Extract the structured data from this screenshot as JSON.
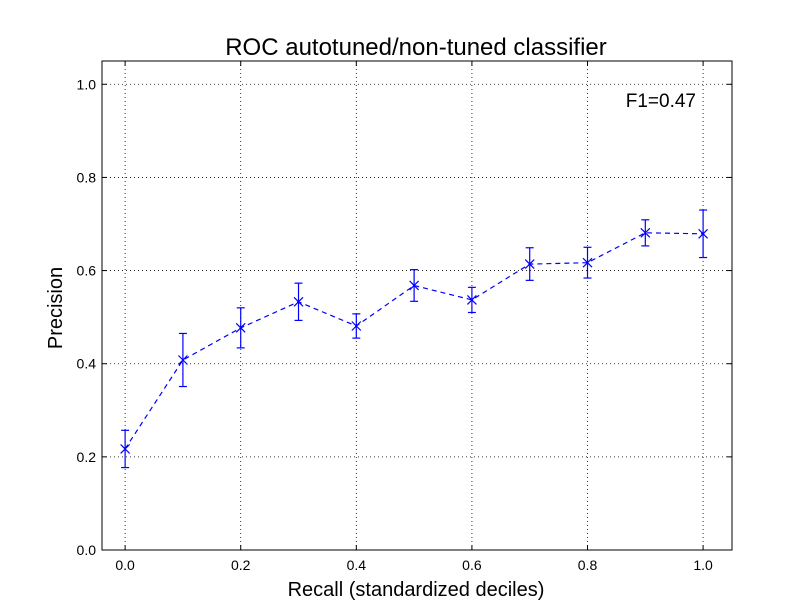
{
  "chart_data": {
    "type": "line",
    "title": "ROC autotuned/non-tuned classifier",
    "xlabel": "Recall (standardized deciles)",
    "ylabel": "Precision",
    "xlim": [
      -0.04,
      1.05
    ],
    "ylim": [
      0.0,
      1.05
    ],
    "x_ticks": [
      "0.0",
      "0.2",
      "0.4",
      "0.6",
      "0.8",
      "1.0"
    ],
    "y_ticks": [
      "0.0",
      "0.2",
      "0.4",
      "0.6",
      "0.8",
      "1.0"
    ],
    "grid": true,
    "line_style": "dashed",
    "marker": "x",
    "color": "#0000ff",
    "annotation": "F1=0.47",
    "annotation_placement": "top-right",
    "series": [
      {
        "x": [
          0.0,
          0.1,
          0.2,
          0.3,
          0.4,
          0.5,
          0.6,
          0.7,
          0.8,
          0.9,
          1.0
        ],
        "y": [
          0.217,
          0.408,
          0.477,
          0.533,
          0.481,
          0.568,
          0.537,
          0.614,
          0.617,
          0.681,
          0.679
        ],
        "error": [
          0.04,
          0.057,
          0.043,
          0.04,
          0.026,
          0.034,
          0.027,
          0.035,
          0.033,
          0.028,
          0.051
        ]
      }
    ]
  }
}
